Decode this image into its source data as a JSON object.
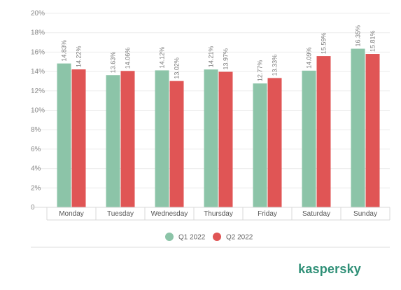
{
  "chart_data": {
    "type": "bar",
    "categories": [
      "Monday",
      "Tuesday",
      "Wednesday",
      "Thursday",
      "Friday",
      "Saturday",
      "Sunday"
    ],
    "series": [
      {
        "name": "Q1 2022",
        "color": "#8cc4a8",
        "values": [
          14.83,
          13.63,
          14.12,
          14.21,
          12.77,
          14.09,
          16.35
        ],
        "labels": [
          "14.83%",
          "13.63%",
          "14.12%",
          "14.21%",
          "12.77%",
          "14.09%",
          "16.35%"
        ]
      },
      {
        "name": "Q2 2022",
        "color": "#e05555",
        "values": [
          14.22,
          14.06,
          13.02,
          13.97,
          13.33,
          15.59,
          15.81
        ],
        "labels": [
          "14.22%",
          "14.06%",
          "13.02%",
          "13.97%",
          "13.33%",
          "15.59%",
          "15.81%"
        ]
      }
    ],
    "yticks": [
      "0",
      "2%",
      "4%",
      "6%",
      "8%",
      "10%",
      "12%",
      "14%",
      "16%",
      "18%",
      "20%"
    ],
    "ylim": [
      0,
      20
    ],
    "grid": true,
    "legend_position": "bottom"
  },
  "brand": {
    "logo_text": "kaspersky",
    "color": "#2e8f76"
  }
}
